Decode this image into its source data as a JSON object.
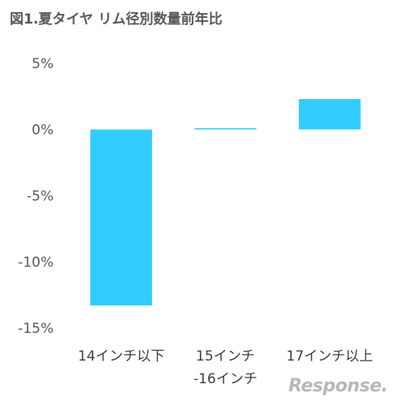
{
  "chart_data": {
    "type": "bar",
    "title": "図1.夏タイヤ リム径別数量前年比",
    "categories": [
      [
        "14インチ以下"
      ],
      [
        "15インチ",
        "-16インチ"
      ],
      [
        "17インチ以上"
      ]
    ],
    "values": [
      -13.3,
      0.1,
      2.3
    ],
    "ylim": [
      -15,
      5
    ],
    "yticks": [
      5,
      0,
      -5,
      -10,
      -15
    ],
    "ytick_labels": [
      "5%",
      "0%",
      "-5%",
      "-10%",
      "-15%"
    ],
    "xlabel": "",
    "ylabel": "",
    "grid": false,
    "bar_color": "#33ccff",
    "watermark": "Response."
  }
}
